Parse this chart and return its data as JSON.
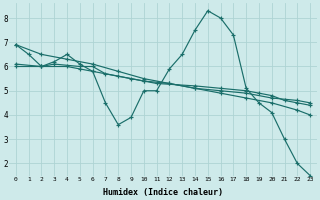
{
  "xlabel": "Humidex (Indice chaleur)",
  "background_color": "#ceeaea",
  "grid_color": "#aed4d4",
  "line_color": "#1a6e6a",
  "series": [
    {
      "x": [
        0,
        1,
        2,
        3,
        4,
        5,
        6,
        7,
        8,
        9,
        10,
        11,
        12,
        13,
        14,
        15,
        16,
        17,
        18,
        19,
        20,
        21,
        22,
        23
      ],
      "y": [
        6.9,
        6.5,
        6.0,
        6.2,
        6.5,
        6.1,
        5.8,
        4.5,
        3.6,
        3.9,
        5.0,
        5.0,
        5.9,
        6.5,
        7.5,
        8.3,
        8.0,
        7.3,
        5.1,
        4.5,
        4.1,
        3.0,
        2.0,
        1.5
      ]
    },
    {
      "x": [
        0,
        2,
        4,
        6,
        8,
        10,
        12,
        14,
        16,
        18,
        20,
        22,
        23
      ],
      "y": [
        6.9,
        6.5,
        6.3,
        6.1,
        5.8,
        5.5,
        5.3,
        5.1,
        4.9,
        4.7,
        4.5,
        4.2,
        4.0
      ]
    },
    {
      "x": [
        0,
        2,
        3,
        5,
        6,
        7,
        9,
        10,
        11,
        14,
        16,
        18,
        19,
        20,
        21,
        22,
        23
      ],
      "y": [
        6.0,
        6.0,
        6.1,
        6.0,
        6.0,
        5.7,
        5.5,
        5.4,
        5.3,
        5.2,
        5.1,
        5.0,
        4.9,
        4.8,
        4.6,
        4.5,
        4.4
      ]
    },
    {
      "x": [
        0,
        2,
        4,
        5,
        6,
        8,
        10,
        12,
        14,
        16,
        18,
        20,
        22,
        23
      ],
      "y": [
        6.1,
        6.0,
        6.0,
        5.9,
        5.8,
        5.6,
        5.4,
        5.3,
        5.1,
        5.0,
        4.9,
        4.7,
        4.6,
        4.5
      ]
    }
  ],
  "ylim": [
    1.5,
    8.6
  ],
  "xlim": [
    -0.5,
    23.5
  ],
  "yticks": [
    2,
    3,
    4,
    5,
    6,
    7,
    8
  ],
  "xticks": [
    0,
    1,
    2,
    3,
    4,
    5,
    6,
    7,
    8,
    9,
    10,
    11,
    12,
    13,
    14,
    15,
    16,
    17,
    18,
    19,
    20,
    21,
    22,
    23
  ],
  "xtick_labels": [
    "0",
    "1",
    "2",
    "3",
    "4",
    "5",
    "6",
    "7",
    "8",
    "9",
    "10",
    "11",
    "12",
    "13",
    "14",
    "15",
    "16",
    "17",
    "18",
    "19",
    "20",
    "21",
    "22",
    "23"
  ]
}
